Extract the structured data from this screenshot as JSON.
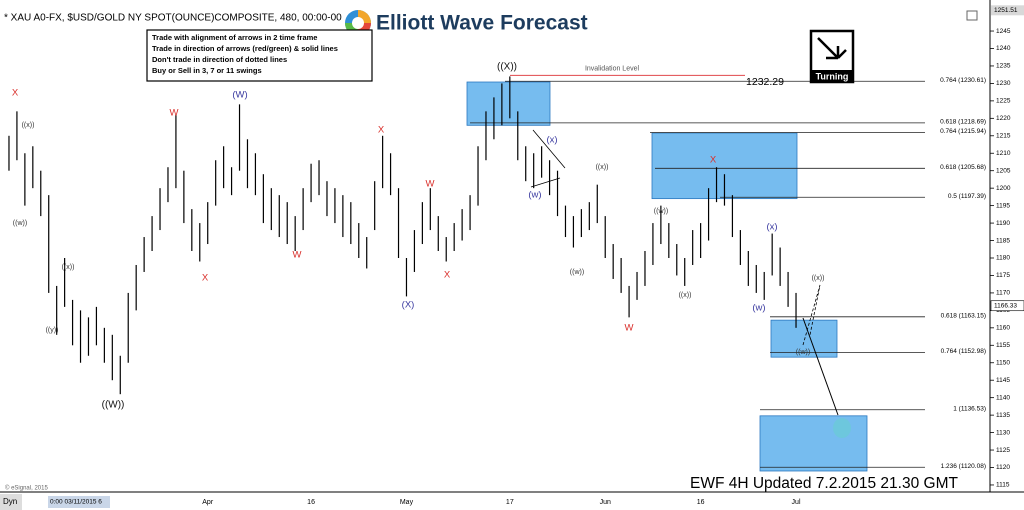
{
  "title": "* XAU A0-FX, $USD/GOLD NY SPOT(OUNCE)COMPOSITE, 480, 00:00-00",
  "logo": "Elliott Wave Forecast",
  "rules": [
    "Trade with alignment of arrows in 2 time frame",
    "Trade in direction of arrows (red/green) & solid lines",
    "Don't trade in direction of dotted lines",
    "Buy or Sell in 3, 7 or 11 swings"
  ],
  "turning": "Turning",
  "update_note": "EWF 4H Updated 7.2.2015 21.30 GMT",
  "copyright": "© eSignal, 2015",
  "corner_label": "Dyn",
  "cursor_label": "0:00 03/11/2015 6",
  "chart_data": {
    "type": "hilo",
    "categories": [
      null,
      null,
      null,
      null,
      null,
      null,
      null,
      null,
      null,
      null,
      null,
      null,
      null,
      null,
      null,
      null,
      null,
      null,
      null,
      null,
      null,
      null,
      null,
      null,
      null,
      "Apr",
      null,
      null,
      null,
      null,
      null,
      null,
      null,
      null,
      null,
      null,
      null,
      null,
      "16",
      null,
      null,
      null,
      null,
      null,
      null,
      null,
      null,
      null,
      null,
      null,
      "May",
      null,
      null,
      null,
      null,
      null,
      null,
      null,
      null,
      null,
      null,
      null,
      null,
      "17",
      null,
      null,
      null,
      null,
      null,
      null,
      null,
      null,
      null,
      null,
      null,
      "Jun",
      null,
      null,
      null,
      null,
      null,
      null,
      null,
      null,
      null,
      null,
      null,
      "16",
      null,
      null,
      null,
      null,
      null,
      null,
      null,
      null,
      null,
      null,
      null,
      "Jul"
    ],
    "series": [
      {
        "color": "#000000",
        "high": [
          1215,
          1222,
          1210,
          1212,
          1205,
          1198,
          1172,
          1180,
          1168,
          1165,
          1163,
          1166,
          1160,
          1158,
          1152,
          1170,
          1178,
          1186,
          1192,
          1200,
          1206,
          1221,
          1205,
          1194,
          1190,
          1196,
          1208,
          1212,
          1206,
          1224,
          1214,
          1210,
          1204,
          1200,
          1198,
          1196,
          1192,
          1200,
          1207,
          1208,
          1202,
          1200,
          1198,
          1196,
          1190,
          1186,
          1202,
          1215,
          1210,
          1200,
          1180,
          1188,
          1196,
          1200,
          1192,
          1186,
          1190,
          1194,
          1198,
          1212,
          1222,
          1226,
          1230,
          1232,
          1222,
          1212,
          1210,
          1212,
          1208,
          1205,
          1195,
          1192,
          1194,
          1196,
          1201,
          1192,
          1184,
          1180,
          1172,
          1176,
          1182,
          1190,
          1195,
          1190,
          1184,
          1180,
          1188,
          1190,
          1200,
          1206,
          1204,
          1198,
          1188,
          1182,
          1178,
          1176,
          1187,
          1183,
          1176,
          1170
        ],
        "low": [
          1205,
          1208,
          1195,
          1200,
          1192,
          1170,
          1158,
          1166,
          1155,
          1150,
          1152,
          1155,
          1150,
          1145,
          1141,
          1150,
          1165,
          1176,
          1182,
          1188,
          1196,
          1200,
          1190,
          1182,
          1179,
          1184,
          1195,
          1200,
          1198,
          1205,
          1200,
          1198,
          1190,
          1188,
          1186,
          1184,
          1182,
          1188,
          1196,
          1198,
          1192,
          1190,
          1186,
          1184,
          1180,
          1177,
          1188,
          1200,
          1198,
          1180,
          1169,
          1176,
          1184,
          1188,
          1182,
          1179,
          1182,
          1185,
          1188,
          1195,
          1208,
          1214,
          1218,
          1220,
          1208,
          1202,
          1200,
          1203,
          1198,
          1192,
          1186,
          1183,
          1186,
          1188,
          1190,
          1180,
          1174,
          1170,
          1163,
          1168,
          1172,
          1178,
          1184,
          1180,
          1175,
          1172,
          1178,
          1180,
          1185,
          1196,
          1195,
          1186,
          1178,
          1172,
          1170,
          1168,
          1175,
          1172,
          1166,
          1160
        ]
      }
    ],
    "ylim": [
      1113.5,
      1251.51
    ],
    "yticks": [
      1115,
      1120,
      1125,
      1130,
      1135,
      1140,
      1145,
      1150,
      1155,
      1160,
      1165,
      1170,
      1175,
      1180,
      1185,
      1190,
      1195,
      1200,
      1205,
      1210,
      1215,
      1220,
      1225,
      1230,
      1235,
      1240,
      1245
    ],
    "last_price": 1166.33,
    "levels": [
      {
        "value": 1230.61,
        "label": "0.764 (1230.61)"
      },
      {
        "value": 1218.69,
        "label": "0.618 (1218.69)"
      },
      {
        "value": 1215.94,
        "label": "0.764 (1215.94)"
      },
      {
        "value": 1205.68,
        "label": "0.618 (1205.68)"
      },
      {
        "value": 1197.39,
        "label": "0.5 (1197.39)"
      },
      {
        "value": 1163.15,
        "label": "0.618 (1163.15)"
      },
      {
        "value": 1152.98,
        "label": "0.764 (1152.98)"
      },
      {
        "value": 1136.53,
        "label": "1 (1136.53)"
      },
      {
        "value": 1120.08,
        "label": "1.236 (1120.08)"
      }
    ],
    "invalidation": {
      "label": "Invalidation Level",
      "value": 1232.29,
      "color": "#e0474c"
    },
    "zones": [
      [
        1230.4,
        1218
      ],
      [
        1215.8,
        1197
      ],
      [
        1162.2,
        1151.6
      ],
      [
        1134.8,
        1119
      ]
    ],
    "zone_color": "#5eb0ec",
    "wave_labels": [
      {
        "text": "X",
        "color": "#d9302c"
      },
      {
        "text": "((x))",
        "color": "#333333"
      },
      {
        "text": "((w))",
        "color": "#333333"
      },
      {
        "text": "((x))",
        "color": "#333333"
      },
      {
        "text": "((y))",
        "color": "#333333"
      },
      {
        "text": "((W))",
        "color": "#111111"
      },
      {
        "text": "W",
        "color": "#d9302c"
      },
      {
        "text": "X",
        "color": "#d9302c"
      },
      {
        "text": "(W)",
        "color": "#3a3aa0"
      },
      {
        "text": "W",
        "color": "#d9302c"
      },
      {
        "text": "X",
        "color": "#d9302c"
      },
      {
        "text": "W",
        "color": "#d9302c"
      },
      {
        "text": "(X)",
        "color": "#3a3aa0"
      },
      {
        "text": "X",
        "color": "#d9302c"
      },
      {
        "text": "((X))",
        "color": "#111111"
      },
      {
        "text": "(x)",
        "color": "#3a3aa0"
      },
      {
        "text": "(w)",
        "color": "#3a3aa0"
      },
      {
        "text": "((x))",
        "color": "#333333"
      },
      {
        "text": "((w))",
        "color": "#333333"
      },
      {
        "text": "W",
        "color": "#d9302c"
      },
      {
        "text": "((w))",
        "color": "#333333"
      },
      {
        "text": "((x))",
        "color": "#333333"
      },
      {
        "text": "X",
        "color": "#d9302c"
      },
      {
        "text": "(x)",
        "color": "#3a3aa0"
      },
      {
        "text": "(w)",
        "color": "#3a3aa0"
      },
      {
        "text": "((x))",
        "color": "#333333"
      },
      {
        "text": "((w))",
        "color": "#333333"
      }
    ]
  }
}
